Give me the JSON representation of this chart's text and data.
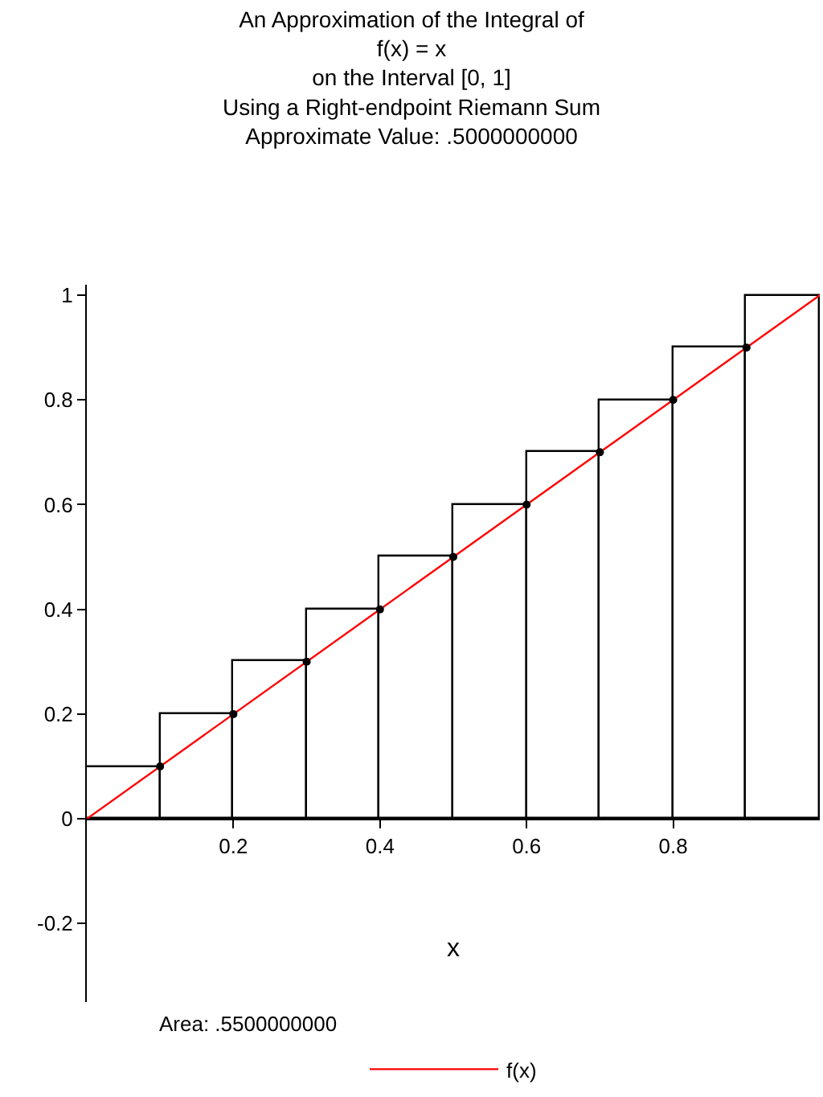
{
  "chart_data": {
    "type": "bar",
    "title": "An Approximation of the Integral of\nf(x) = x\non the Interval [0, 1]\nUsing a Right-endpoint Riemann Sum\nApproximate Value: .5000000000",
    "xlabel": "x",
    "series": [
      {
        "color": "#000000",
        "x": [
          0.05,
          0.15,
          0.25,
          0.35,
          0.45,
          0.55,
          0.65,
          0.75,
          0.85,
          0.95
        ],
        "values": [
          0.1,
          0.2,
          0.3,
          0.4,
          0.5,
          0.6,
          0.7,
          0.8,
          0.9,
          1.0
        ]
      },
      {
        "type": "line",
        "name": "f(x)",
        "color": "#ff0000",
        "x": [
          0,
          1
        ],
        "values": [
          0,
          1
        ],
        "line_style": "solid"
      },
      {
        "type": "scatter",
        "color": "#000000",
        "marker": "circle",
        "x": [
          0.1,
          0.2,
          0.3,
          0.4,
          0.5,
          0.6,
          0.7,
          0.8,
          0.9
        ],
        "values": [
          0.1,
          0.2,
          0.3,
          0.4,
          0.5,
          0.6,
          0.7,
          0.8,
          0.9
        ]
      }
    ],
    "xlim": [
      0,
      1
    ],
    "xticks": [
      0.2,
      0.4,
      0.6,
      0.8
    ],
    "ylim": [
      -0.35,
      1.02
    ],
    "yticks": [
      -0.2,
      0,
      0.2,
      0.4,
      0.6,
      0.8,
      1
    ],
    "annotations": [
      "Area: .5500000000"
    ],
    "legend": "bottom"
  }
}
